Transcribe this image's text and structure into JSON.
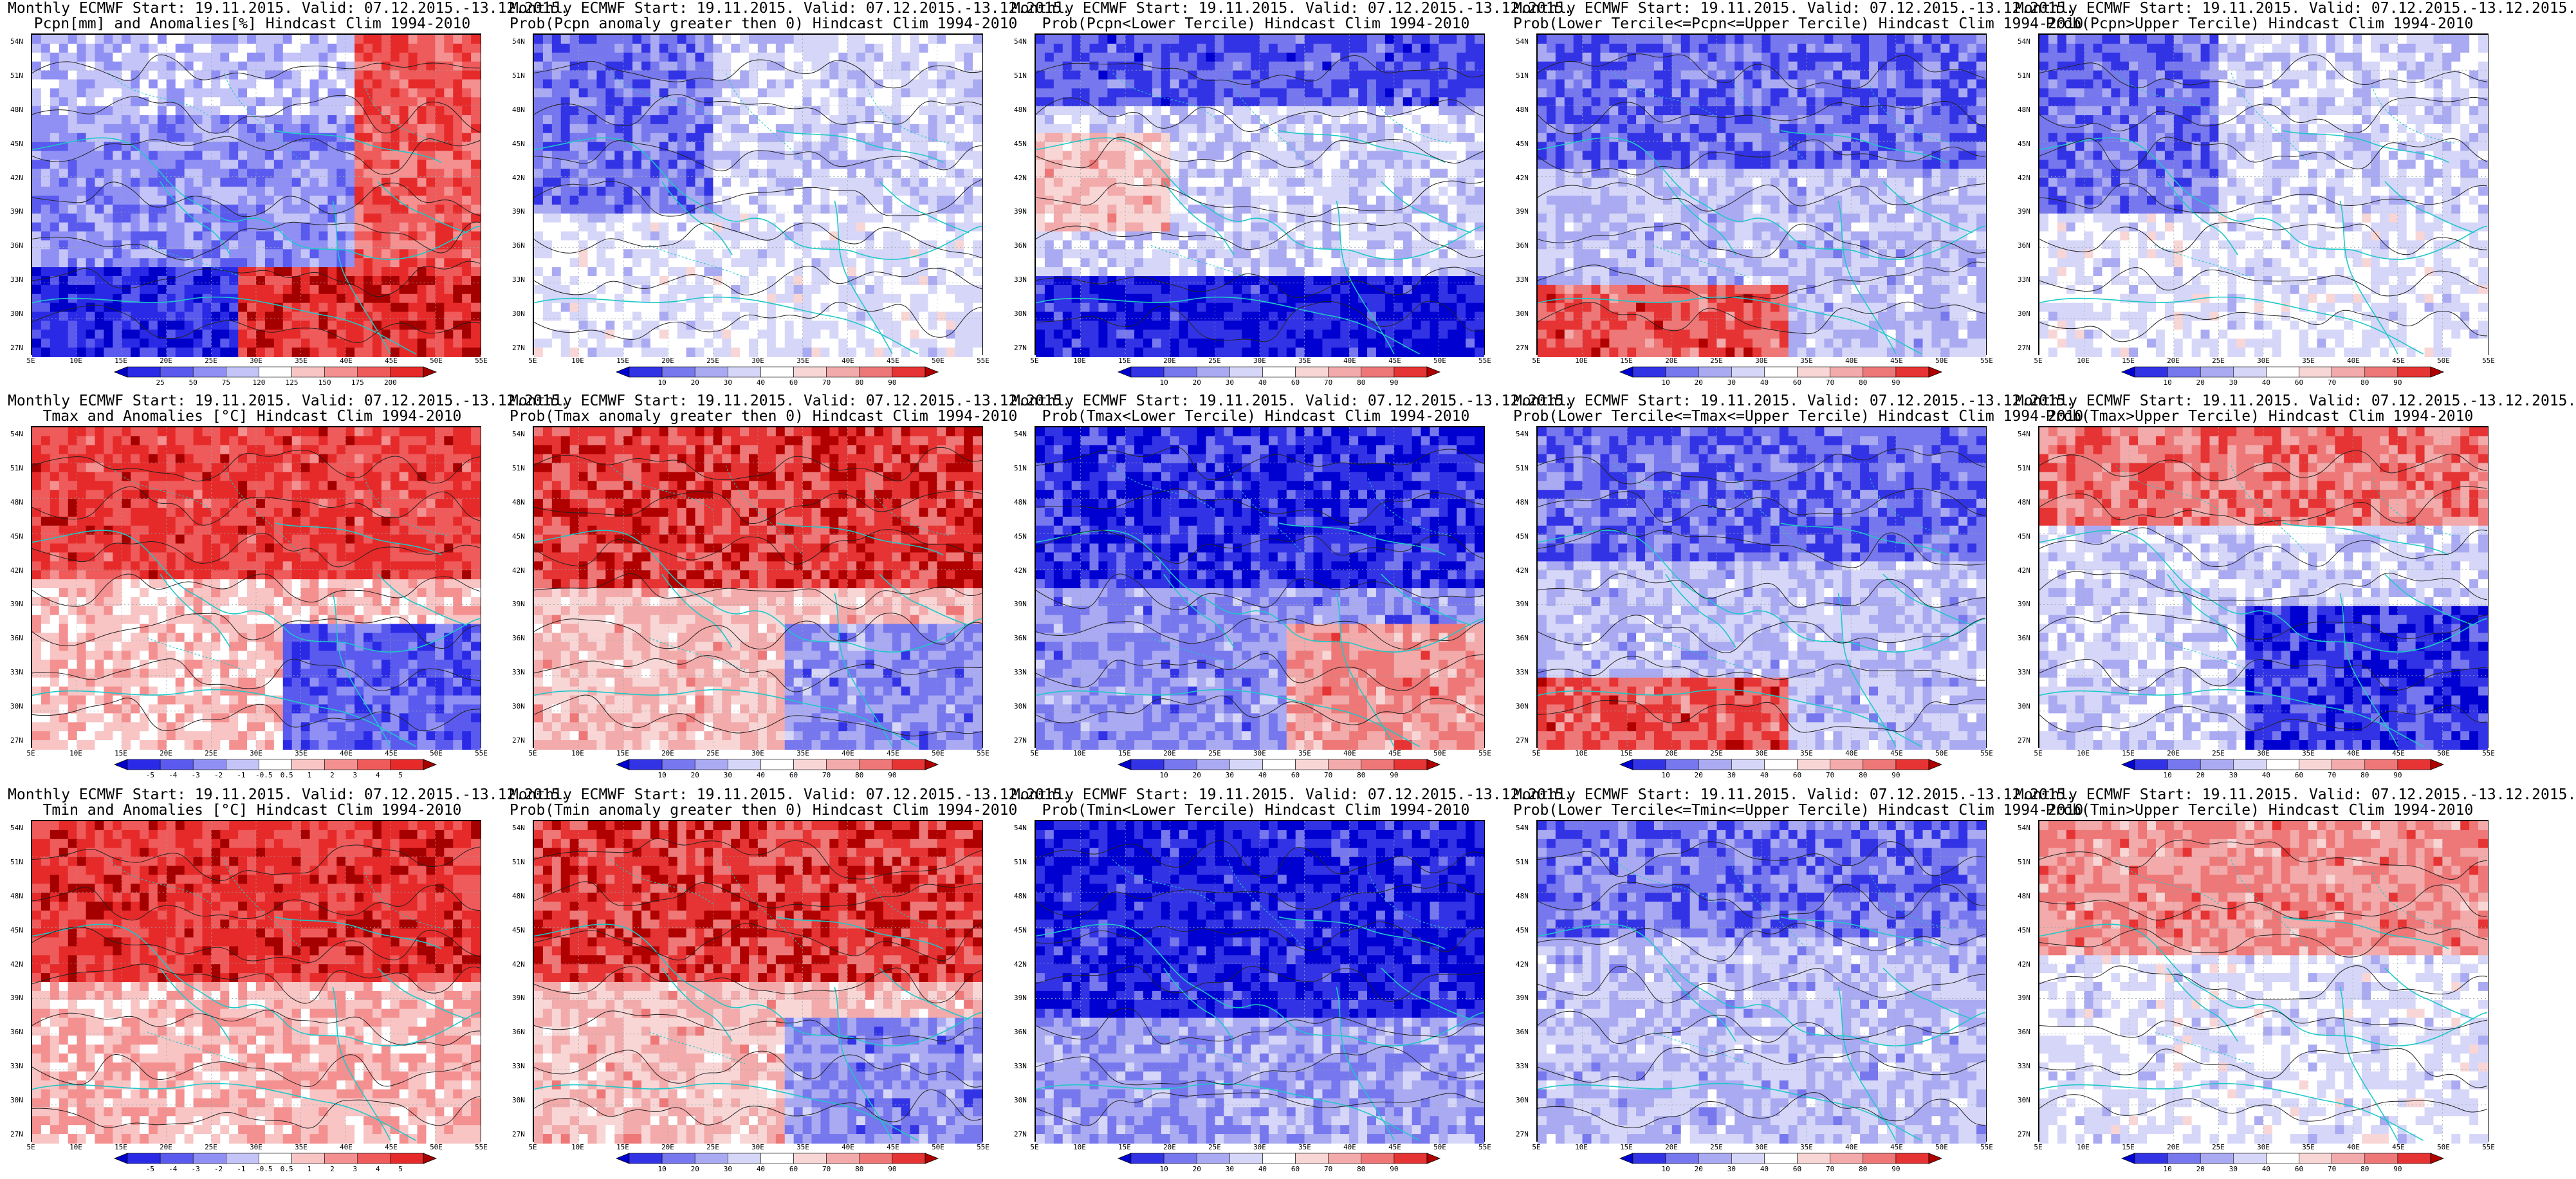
{
  "lat_ticks": [
    "54N",
    "51N",
    "48N",
    "45N",
    "42N",
    "39N",
    "36N",
    "33N",
    "30N",
    "27N"
  ],
  "lon_ticks": [
    "5E",
    "10E",
    "15E",
    "20E",
    "25E",
    "30E",
    "35E",
    "40E",
    "45E",
    "50E",
    "55E"
  ],
  "palettes": {
    "red_blue_anom": [
      "#0000c8",
      "#2a2ae6",
      "#5a5aef",
      "#9090f4",
      "#c4c4f8",
      "#ffffff",
      "#f8c4c4",
      "#f49090",
      "#ef5a5a",
      "#e62a2a",
      "#a50000"
    ],
    "prob": [
      "#0000d0",
      "#3333e6",
      "#7777ee",
      "#aaaaf2",
      "#d6d6f8",
      "#ffffff",
      "#f8d6d6",
      "#f2aaaa",
      "#ee7777",
      "#e63333",
      "#b00000"
    ]
  },
  "rows": [
    {
      "panels": [
        {
          "title1": "Monthly ECMWF Start: 19.11.2015. Valid: 07.12.2015.-13.12.2015.",
          "title2": "Pcpn[mm] and Anomalies[%]",
          "title2_tail": "Hindcast Clim 1994-2010",
          "scheme": "anom_pcp",
          "cbar": [
            "25",
            "50",
            "75",
            "120",
            "125",
            "150",
            "175",
            "200"
          ]
        },
        {
          "title1": "Monthly ECMWF Start: 19.11.2015. Valid: 07.12.2015.-13.12.2015.",
          "title2": "Prob(Pcpn anomaly greater then 0)",
          "title2_tail": "Hindcast Clim 1994-2010",
          "scheme": "prob_lo",
          "cbar": [
            "10",
            "20",
            "30",
            "40",
            "60",
            "70",
            "80",
            "90"
          ]
        },
        {
          "title1": "Monthly ECMWF Start: 19.11.2015. Valid: 07.12.2015.-13.12.2015.",
          "title2": "Prob(Pcpn<Lower Tercile)",
          "title2_tail": "Hindcast Clim 1994-2010",
          "scheme": "prob_dry",
          "cbar": [
            "10",
            "20",
            "30",
            "40",
            "60",
            "70",
            "80",
            "90"
          ]
        },
        {
          "title1": "Monthly ECMWF Start: 19.11.2015. Valid: 07.12.2015.-13.12.2015.",
          "title2": "Prob(Lower Tercile<=Pcpn<=Upper Tercile)",
          "title2_tail": "Hindcast Clim 1994-2010",
          "scheme": "prob_mid",
          "cbar": [
            "10",
            "20",
            "30",
            "40",
            "60",
            "70",
            "80",
            "90"
          ]
        },
        {
          "title1": "Monthly ECMWF Start: 19.11.2015. Valid: 07.12.2015.-13.12.2015.",
          "title2": "Prob(Pcpn>Upper Tercile)",
          "title2_tail": "Hindcast Clim 1994-2010",
          "scheme": "prob_lo",
          "cbar": [
            "10",
            "20",
            "30",
            "40",
            "60",
            "70",
            "80",
            "90"
          ]
        }
      ]
    },
    {
      "panels": [
        {
          "title1": "Monthly ECMWF Start: 19.11.2015. Valid: 07.12.2015.-13.12.2015.",
          "title2": "Tmax and Anomalies [°C]",
          "title2_tail": "Hindcast Clim 1994-2010",
          "scheme": "anom_warm",
          "cbar": [
            "-5",
            "-4",
            "-3",
            "-2",
            "-1",
            "-0.5",
            "0.5",
            "1",
            "2",
            "3",
            "4",
            "5"
          ]
        },
        {
          "title1": "Monthly ECMWF Start: 19.11.2015. Valid: 07.12.2015.-13.12.2015.",
          "title2": "Prob(Tmax anomaly greater then 0)",
          "title2_tail": "Hindcast Clim 1994-2010",
          "scheme": "prob_hot",
          "cbar": [
            "10",
            "20",
            "30",
            "40",
            "60",
            "70",
            "80",
            "90"
          ]
        },
        {
          "title1": "Monthly ECMWF Start: 19.11.2015. Valid: 07.12.2015.-13.12.2015.",
          "title2": "Prob(Tmax<Lower Tercile)",
          "title2_tail": "Hindcast Clim 1994-2010",
          "scheme": "prob_cold",
          "cbar": [
            "10",
            "20",
            "30",
            "40",
            "60",
            "70",
            "80",
            "90"
          ]
        },
        {
          "title1": "Monthly ECMWF Start: 19.11.2015. Valid: 07.12.2015.-13.12.2015.",
          "title2": "Prob(Lower Tercile<=Tmax<=Upper Tercile)",
          "title2_tail": "Hindcast Clim 1994-2010",
          "scheme": "prob_mid",
          "cbar": [
            "10",
            "20",
            "30",
            "40",
            "60",
            "70",
            "80",
            "90"
          ]
        },
        {
          "title1": "Monthly ECMWF Start: 19.11.2015. Valid: 07.12.2015.-13.12.2015.",
          "title2": "Prob(Tmax>Upper Tercile)",
          "title2_tail": "Hindcast Clim 1994-2010",
          "scheme": "prob_hot2",
          "cbar": [
            "10",
            "20",
            "30",
            "40",
            "60",
            "70",
            "80",
            "90"
          ]
        }
      ]
    },
    {
      "panels": [
        {
          "title1": "Monthly ECMWF Start: 19.11.2015. Valid: 07.12.2015.-13.12.2015.",
          "title2": "Tmin and Anomalies [°C]",
          "title2_tail": "Hindcast Clim 1994-2010",
          "scheme": "anom_warm2",
          "cbar": [
            "-5",
            "-4",
            "-3",
            "-2",
            "-1",
            "-0.5",
            "0.5",
            "1",
            "2",
            "3",
            "4",
            "5"
          ]
        },
        {
          "title1": "Monthly ECMWF Start: 19.11.2015. Valid: 07.12.2015.-13.12.2015.",
          "title2": "Prob(Tmin anomaly greater then 0)",
          "title2_tail": "Hindcast Clim 1994-2010",
          "scheme": "prob_hot",
          "cbar": [
            "10",
            "20",
            "30",
            "40",
            "60",
            "70",
            "80",
            "90"
          ]
        },
        {
          "title1": "Monthly ECMWF Start: 19.11.2015. Valid: 07.12.2015.-13.12.2015.",
          "title2": "Prob(Tmin<Lower Tercile)",
          "title2_tail": "Hindcast Clim 1994-2010",
          "scheme": "prob_cold2",
          "cbar": [
            "10",
            "20",
            "30",
            "40",
            "60",
            "70",
            "80",
            "90"
          ]
        },
        {
          "title1": "Monthly ECMWF Start: 19.11.2015. Valid: 07.12.2015.-13.12.2015.",
          "title2": "Prob(Lower Tercile<=Tmin<=Upper Tercile)",
          "title2_tail": "Hindcast Clim 1994-2010",
          "scheme": "prob_mid2",
          "cbar": [
            "10",
            "20",
            "30",
            "40",
            "60",
            "70",
            "80",
            "90"
          ]
        },
        {
          "title1": "Monthly ECMWF Start: 19.11.2015. Valid: 07.12.2015.-13.12.2015.",
          "title2": "Prob(Tmin>Upper Tercile)",
          "title2_tail": "Hindcast Clim 1994-2010",
          "scheme": "prob_hot3",
          "cbar": [
            "10",
            "20",
            "30",
            "40",
            "60",
            "70",
            "80",
            "90"
          ]
        }
      ]
    }
  ]
}
